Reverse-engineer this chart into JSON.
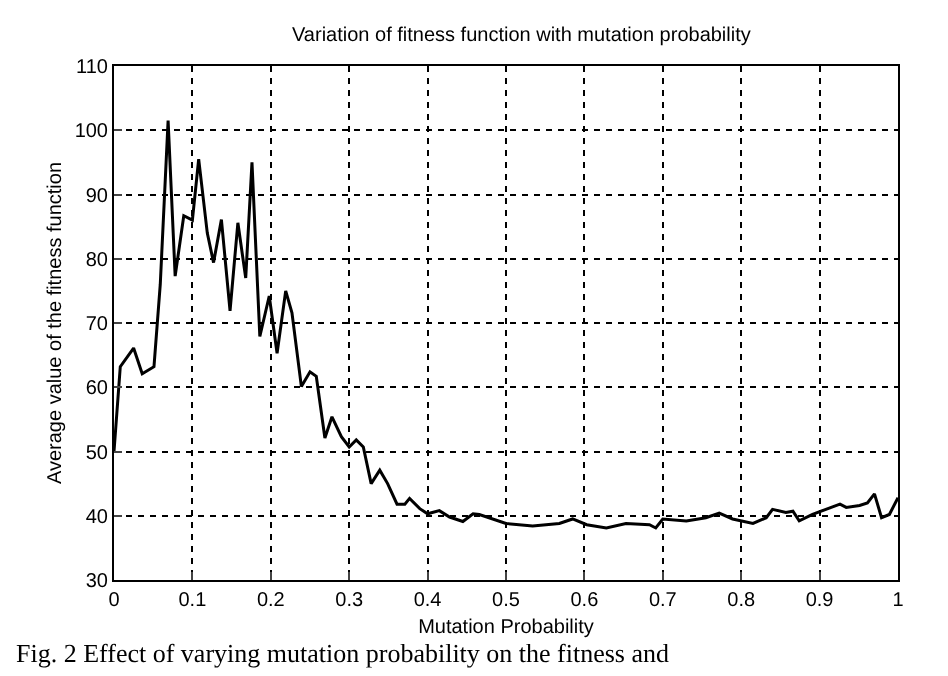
{
  "chart_data": {
    "type": "line",
    "title": "Variation of fitness function with mutation probability",
    "xlabel": "Mutation Probability",
    "ylabel": "Average value of the fitness function",
    "annotations": [
      "Fig. 2 Effect of varying mutation probability on the fitness and"
    ],
    "series": [
      {
        "color": "#000000",
        "x": [
          0,
          0.008,
          0.025,
          0.036,
          0.051,
          0.059,
          0.069,
          0.078,
          0.089,
          0.1,
          0.108,
          0.119,
          0.127,
          0.137,
          0.148,
          0.158,
          0.168,
          0.176,
          0.186,
          0.198,
          0.208,
          0.219,
          0.227,
          0.239,
          0.25,
          0.258,
          0.269,
          0.278,
          0.29,
          0.3,
          0.309,
          0.318,
          0.328,
          0.339,
          0.349,
          0.361,
          0.371,
          0.377,
          0.39,
          0.4,
          0.415,
          0.428,
          0.445,
          0.458,
          0.466,
          0.5,
          0.534,
          0.568,
          0.585,
          0.603,
          0.628,
          0.653,
          0.683,
          0.691,
          0.7,
          0.73,
          0.755,
          0.772,
          0.789,
          0.815,
          0.832,
          0.84,
          0.857,
          0.866,
          0.874,
          0.891,
          0.908,
          0.926,
          0.934,
          0.951,
          0.961,
          0.97,
          0.979,
          0.989,
          1.0
        ],
        "values": [
          50,
          63.2,
          66.1,
          62.1,
          63.2,
          76,
          101.5,
          77.3,
          86.7,
          86,
          95.5,
          84,
          79.4,
          86.1,
          71.9,
          85.6,
          77,
          95,
          67.9,
          74.2,
          65.3,
          75,
          71.6,
          60.1,
          62.4,
          61.7,
          52.1,
          55.4,
          52.3,
          50.7,
          51.8,
          50.7,
          45,
          47.1,
          45,
          41.8,
          41.8,
          42.7,
          41.1,
          40.3,
          40.8,
          39.8,
          39.1,
          40.3,
          40.2,
          38.8,
          38.4,
          38.8,
          39.5,
          38.6,
          38.1,
          38.8,
          38.6,
          38.1,
          39.5,
          39.2,
          39.7,
          40.4,
          39.5,
          38.8,
          39.7,
          41,
          40.5,
          40.7,
          39.2,
          40.2,
          41,
          41.8,
          41.3,
          41.6,
          42,
          43.4,
          39.7,
          40.2,
          42.8
        ]
      }
    ],
    "xlim": [
      0,
      1
    ],
    "xticks": [
      0,
      0.1,
      0.2,
      0.3,
      0.4,
      0.5,
      0.6,
      0.7,
      0.8,
      0.9,
      1
    ],
    "ylim": [
      30,
      110
    ],
    "yticks": [
      30,
      40,
      50,
      60,
      70,
      80,
      90,
      100,
      110
    ],
    "grid": true,
    "line_style": "solid",
    "marker": "none"
  }
}
